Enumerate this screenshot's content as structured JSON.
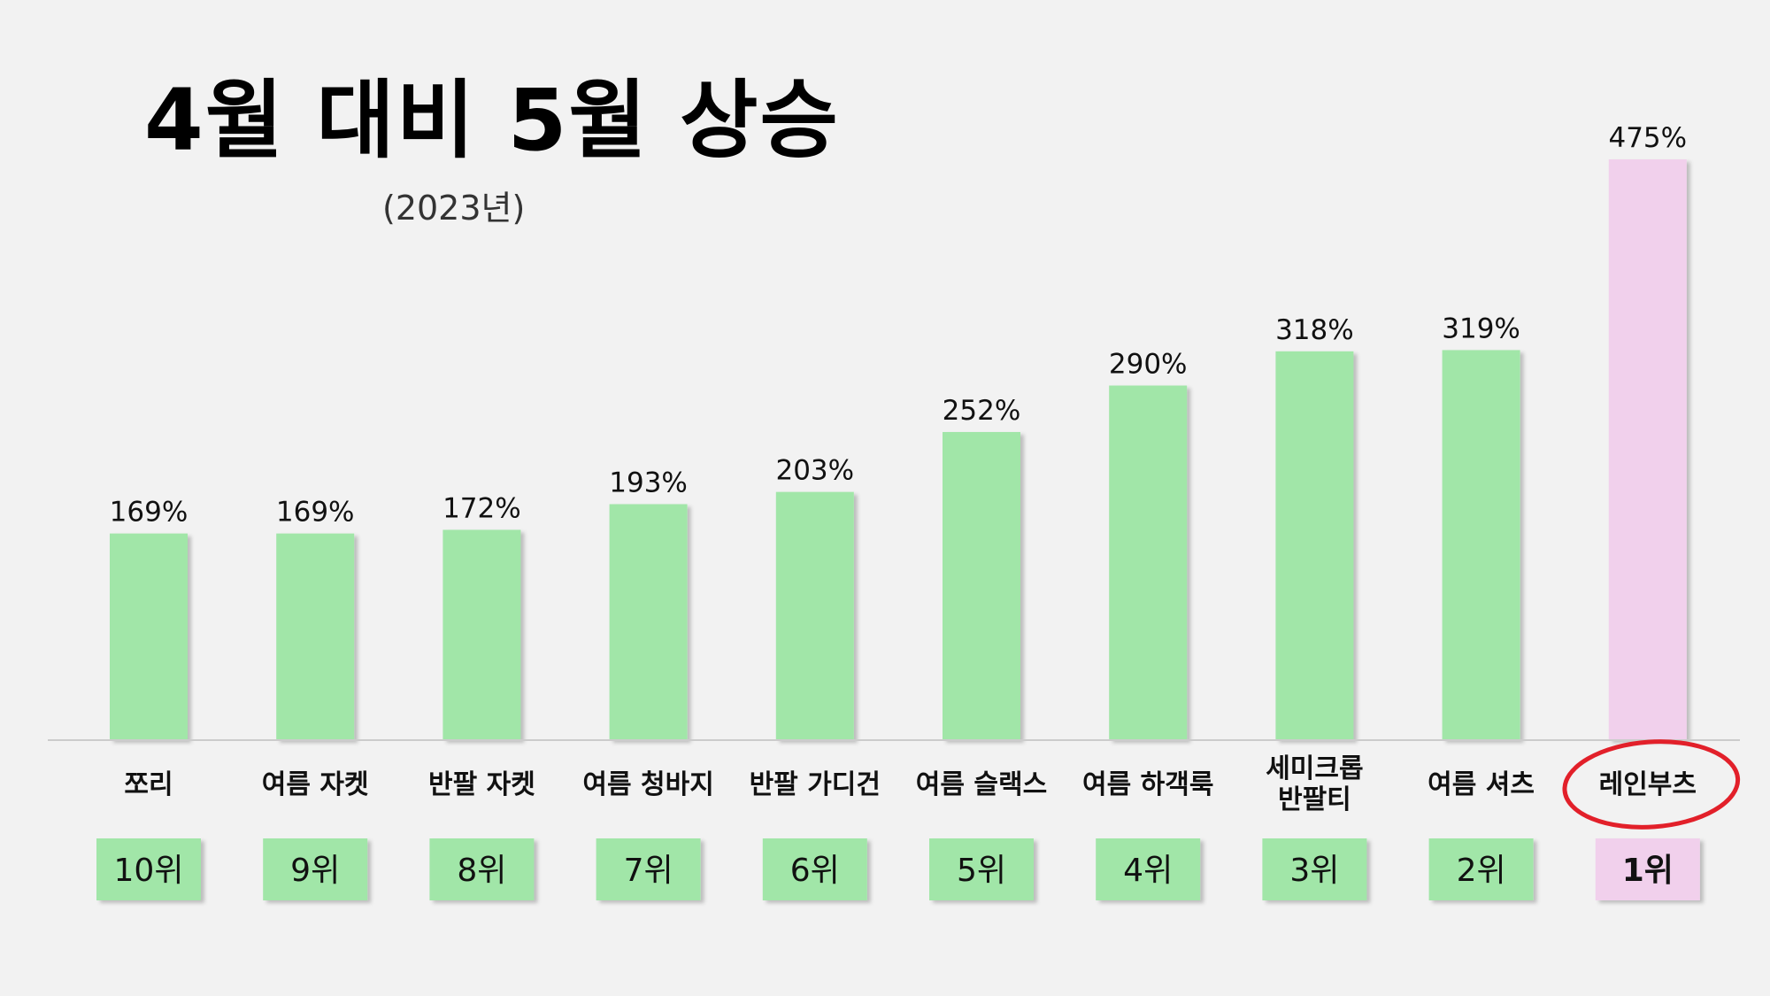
{
  "chart_data": {
    "type": "bar",
    "title": "4월 대비 5월 상승",
    "subtitle": "(2023년)",
    "categories": [
      "쪼리",
      "여름 자켓",
      "반팔 자켓",
      "여름 청바지",
      "반팔 가디건",
      "여름 슬랙스",
      "여름 하객룩",
      "세미크롭 반팔티",
      "여름 셔츠",
      "레인부츠"
    ],
    "values": [
      169,
      169,
      172,
      193,
      203,
      252,
      290,
      318,
      319,
      475
    ],
    "value_labels": [
      "169%",
      "169%",
      "172%",
      "193%",
      "203%",
      "252%",
      "290%",
      "318%",
      "319%",
      "475%"
    ],
    "ranks": [
      "10위",
      "9위",
      "8위",
      "7위",
      "6위",
      "5위",
      "4위",
      "3위",
      "2위",
      "1위"
    ],
    "ylim": [
      0,
      475
    ],
    "grid": false,
    "highlight_index": 9,
    "colors": {
      "bar": "#a1e6a8",
      "highlight_bar": "#f1d0ec",
      "rank_box": "#a1e6a8",
      "highlight_rank_box": "#f1d0ec",
      "circle": "#e2202a",
      "baseline": "#cccccc"
    }
  }
}
